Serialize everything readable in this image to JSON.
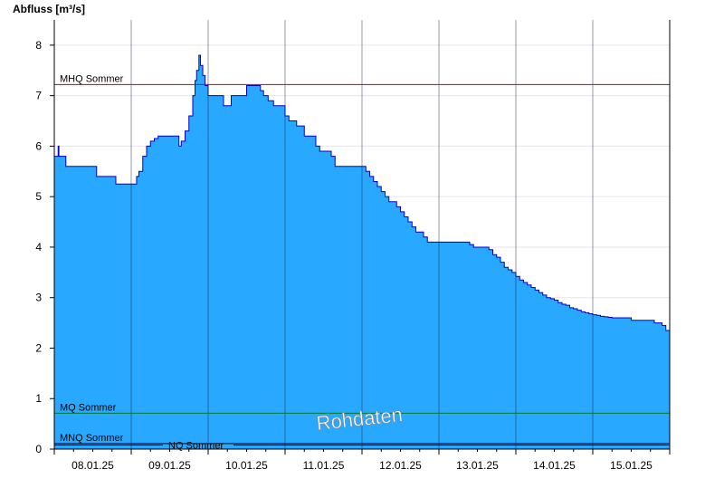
{
  "chart_data": {
    "type": "area",
    "ylabel": "Abfluss [m³/s]",
    "ylim": [
      0,
      8.5
    ],
    "yticks": [
      0,
      1,
      2,
      3,
      4,
      5,
      6,
      7,
      8
    ],
    "xlim": [
      0,
      8
    ],
    "xtick_labels": [
      "08.01.25",
      "09.01.25",
      "10.01.25",
      "11.01.25",
      "12.01.25",
      "13.01.25",
      "14.01.25",
      "15.01.25"
    ],
    "grid": true,
    "fill_color": "#29a8ff",
    "line_color": "#0000cc",
    "watermark": "Rohdaten",
    "reference_lines": [
      {
        "label": "MHQ Sommer",
        "value": 7.22,
        "color": "#cc0000"
      },
      {
        "label": "MQ Sommer",
        "value": 0.71,
        "color": "#007a33"
      },
      {
        "label": "MNQ Sommer",
        "value": 0.11,
        "color": "#000000"
      },
      {
        "label": "NQ Sommer",
        "value": 0.08,
        "color": "#000000"
      }
    ],
    "series": [
      {
        "x": [
          0,
          0.05,
          0.06,
          0.08,
          0.15,
          0.52,
          0.55,
          0.78,
          0.8,
          1.05,
          1.07,
          1.1,
          1.15,
          1.2,
          1.25,
          1.3,
          1.35,
          1.4,
          1.45,
          1.5,
          1.55,
          1.62,
          1.65,
          1.7,
          1.75,
          1.8,
          1.83,
          1.85,
          1.88,
          1.9,
          1.93,
          1.96,
          2.0,
          2.05,
          2.2,
          2.3,
          2.32,
          2.5,
          2.55,
          2.65,
          2.68,
          2.72,
          2.78,
          2.85,
          2.9,
          3.0,
          3.05,
          3.15,
          3.25,
          3.4,
          3.45,
          3.6,
          3.65,
          4.0,
          4.05,
          4.1,
          4.15,
          4.2,
          4.25,
          4.3,
          4.35,
          4.45,
          4.5,
          4.55,
          4.6,
          4.65,
          4.7,
          4.8,
          4.85,
          5.4,
          5.45,
          5.65,
          5.7,
          5.75,
          5.8,
          5.85,
          5.9,
          5.95,
          6.0,
          6.05,
          6.1,
          6.15,
          6.2,
          6.25,
          6.3,
          6.35,
          6.4,
          6.45,
          6.5,
          6.55,
          6.6,
          6.65,
          6.7,
          6.75,
          6.8,
          6.85,
          6.9,
          6.95,
          7.0,
          7.05,
          7.1,
          7.15,
          7.2,
          7.25,
          7.35,
          7.45,
          7.5,
          7.55,
          7.75,
          7.8,
          7.9,
          7.95,
          8.0
        ],
        "y": [
          5.8,
          6.0,
          5.8,
          5.8,
          5.6,
          5.6,
          5.4,
          5.4,
          5.25,
          5.25,
          5.4,
          5.5,
          5.8,
          6.0,
          6.1,
          6.15,
          6.2,
          6.2,
          6.2,
          6.2,
          6.2,
          6.0,
          6.1,
          6.3,
          6.6,
          7.0,
          7.3,
          7.5,
          7.8,
          7.6,
          7.4,
          7.2,
          7.0,
          7.0,
          6.8,
          7.0,
          7.0,
          7.2,
          7.2,
          7.2,
          7.1,
          7.0,
          6.9,
          6.8,
          6.8,
          6.6,
          6.5,
          6.4,
          6.2,
          6.0,
          5.9,
          5.8,
          5.6,
          5.6,
          5.5,
          5.4,
          5.3,
          5.2,
          5.1,
          5.0,
          4.9,
          4.8,
          4.7,
          4.6,
          4.5,
          4.4,
          4.3,
          4.2,
          4.1,
          4.05,
          4.0,
          3.95,
          3.85,
          3.8,
          3.7,
          3.6,
          3.55,
          3.5,
          3.42,
          3.35,
          3.3,
          3.25,
          3.2,
          3.15,
          3.1,
          3.05,
          3.0,
          2.98,
          2.95,
          2.9,
          2.87,
          2.85,
          2.8,
          2.78,
          2.75,
          2.72,
          2.7,
          2.68,
          2.66,
          2.65,
          2.63,
          2.62,
          2.61,
          2.6,
          2.6,
          2.6,
          2.55,
          2.55,
          2.55,
          2.5,
          2.45,
          2.35,
          2.3
        ]
      }
    ]
  }
}
